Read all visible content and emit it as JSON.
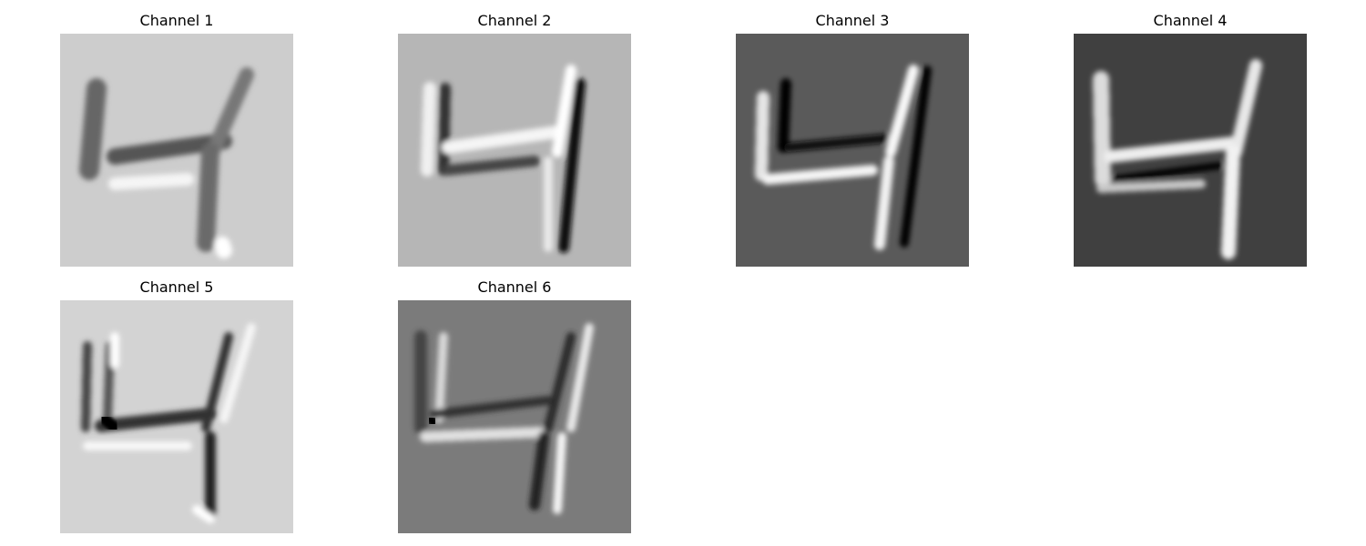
{
  "panels": [
    {
      "title": "Channel 1",
      "background": "#cdcdcd"
    },
    {
      "title": "Channel 2",
      "background": "#b6b6b6"
    },
    {
      "title": "Channel 3",
      "background": "#5a5a5a"
    },
    {
      "title": "Channel 4",
      "background": "#404040"
    },
    {
      "title": "Channel 5",
      "background": "#d3d3d3"
    },
    {
      "title": "Channel 6",
      "background": "#7b7b7b"
    }
  ]
}
